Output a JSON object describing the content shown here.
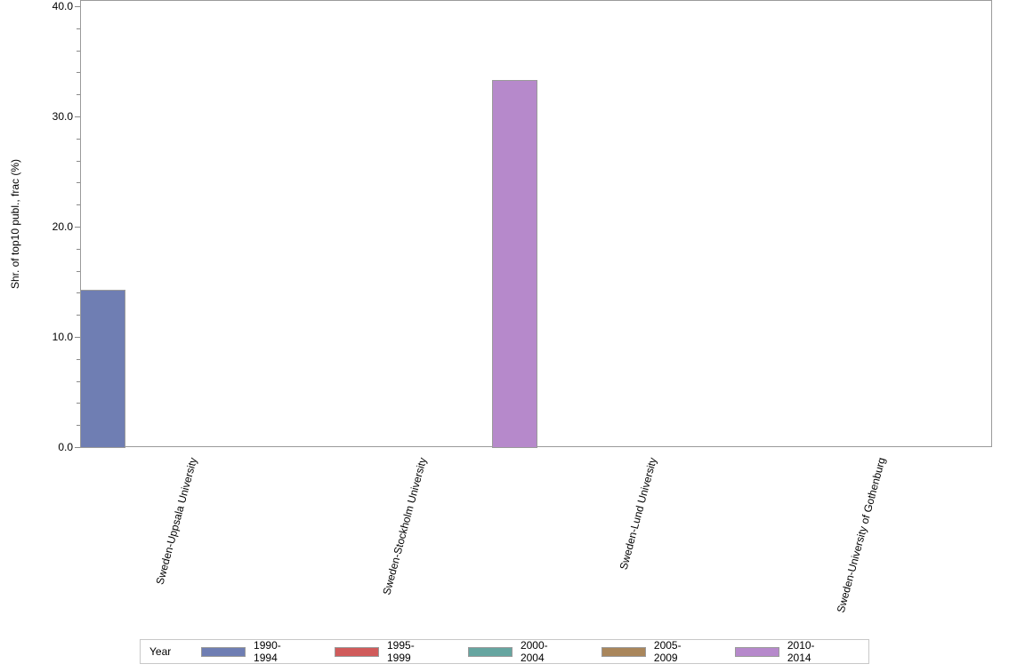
{
  "chart_data": {
    "type": "bar",
    "title": "",
    "xlabel": "",
    "ylabel": "Shr. of top10 publ., frac (%)",
    "ylim": [
      0,
      40
    ],
    "yticks": [
      "0.0",
      "10.0",
      "20.0",
      "30.0",
      "40.0"
    ],
    "grid": false,
    "legend_position": "bottom",
    "legend_title": "Year",
    "categories": [
      "Sweden-Uppsala University",
      "Sweden-Stockholm University",
      "Sweden-Lund University",
      "Sweden-University of Gothenburg"
    ],
    "series": [
      {
        "name": "1990-1994",
        "color": "#6f7eb3",
        "values": [
          14.3,
          0,
          0,
          0
        ]
      },
      {
        "name": "1995-1999",
        "color": "#d05b5b",
        "values": [
          0,
          0,
          0,
          0
        ]
      },
      {
        "name": "2000-2004",
        "color": "#66a5a0",
        "values": [
          0,
          0,
          0,
          0
        ]
      },
      {
        "name": "2005-2009",
        "color": "#a9865b",
        "values": [
          0,
          0,
          0,
          0
        ]
      },
      {
        "name": "2010-2014",
        "color": "#b689cb",
        "values": [
          0,
          0,
          33.3,
          0
        ]
      }
    ]
  }
}
